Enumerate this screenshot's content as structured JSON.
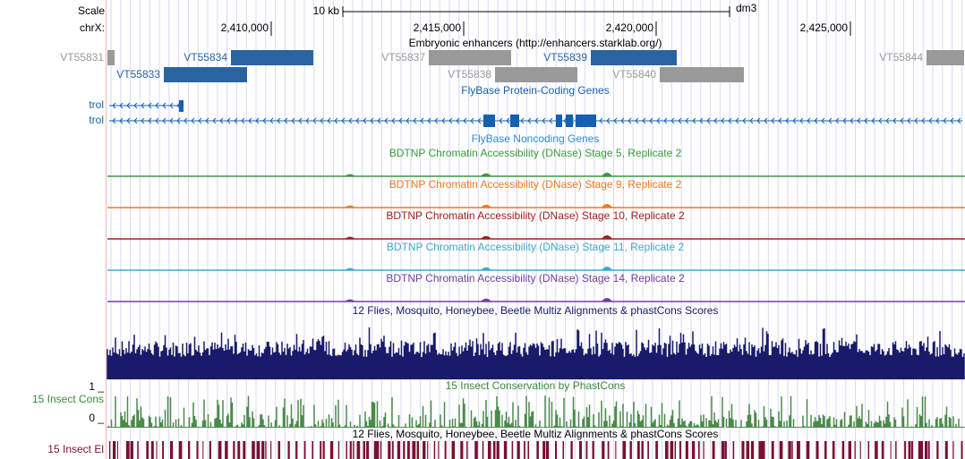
{
  "ruler": {
    "scale_label": "Scale",
    "scale_bar": "10 kb",
    "assembly": "dm3",
    "chrom": "chrX:",
    "ticks": [
      "2,410,000",
      "2,415,000",
      "2,420,000",
      "2,425,000"
    ]
  },
  "enhancers": {
    "title": "Embryonic enhancers (http://enhancers.starklab.org/)",
    "items": [
      "VT55831",
      "VT55834",
      "VT55837",
      "VT55839",
      "VT55844",
      "VT55833",
      "VT55838",
      "VT55840"
    ]
  },
  "genes": {
    "title": "FlyBase Protein-Coding Genes",
    "names": [
      "trol",
      "trol"
    ]
  },
  "noncoding": {
    "title": "FlyBase Noncoding Genes"
  },
  "dnase": {
    "titles": [
      "BDTNP Chromatin Accessibility (DNase) Stage 5, Replicate 2",
      "BDTNP Chromatin Accessibility (DNase) Stage 9, Replicate 2",
      "BDTNP Chromatin Accessibility (DNase) Stage 10, Replicate 2",
      "BDTNP Chromatin Accessibility (DNase) Stage 11, Replicate 2",
      "BDTNP Chromatin Accessibility (DNase) Stage 14, Replicate 2"
    ]
  },
  "multiz": {
    "title": "12 Flies, Mosquito, Honeybee, Beetle Multiz Alignments & phastCons Scores"
  },
  "cons": {
    "title": "15 Insect Conservation by PhastCons",
    "side_label": "15 Insect Cons",
    "top": "1 _",
    "bottom": "0 _"
  },
  "elements": {
    "title": "12 Flies, Mosquito, Honeybee, Beetle Multiz Alignments & phastCons Scores",
    "side_label": "15 Insect El"
  }
}
